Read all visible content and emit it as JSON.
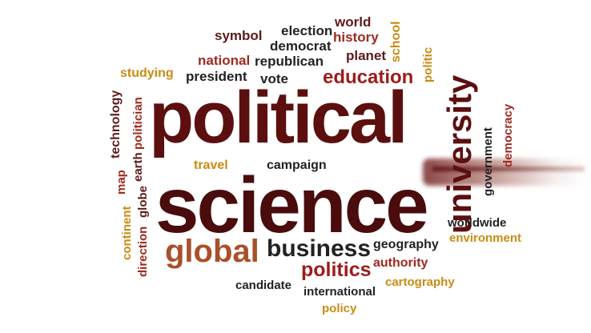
{
  "colors": {
    "dark_red": "#5c0f0f",
    "red": "#9e2a1e",
    "black": "#222222",
    "gold": "#c98b12",
    "brown": "#7b3c1e"
  },
  "words": [
    {
      "id": "political",
      "text": "political",
      "color": "#5c0f0f"
    },
    {
      "id": "science",
      "text": "science",
      "color": "#4a0c0c"
    },
    {
      "id": "university",
      "text": "university",
      "color": "#5c0f0f"
    },
    {
      "id": "global",
      "text": "global",
      "color": "#a9502b"
    },
    {
      "id": "business",
      "text": "business",
      "color": "#222222"
    },
    {
      "id": "politics",
      "text": "politics",
      "color": "#9e1b1b"
    },
    {
      "id": "education",
      "text": "education",
      "color": "#9e1b1b"
    },
    {
      "id": "symbol",
      "text": "symbol",
      "color": "#5c1a1a"
    },
    {
      "id": "election",
      "text": "election",
      "color": "#222222"
    },
    {
      "id": "world",
      "text": "world",
      "color": "#5c1a1a"
    },
    {
      "id": "history",
      "text": "history",
      "color": "#9e2a1e"
    },
    {
      "id": "school",
      "text": "school",
      "color": "#c98b12"
    },
    {
      "id": "democrat",
      "text": "democrat",
      "color": "#222222"
    },
    {
      "id": "national",
      "text": "national",
      "color": "#9e2a1e"
    },
    {
      "id": "republican",
      "text": "republican",
      "color": "#222222"
    },
    {
      "id": "planet",
      "text": "planet",
      "color": "#5c1a1a"
    },
    {
      "id": "politic",
      "text": "politic",
      "color": "#c98b12"
    },
    {
      "id": "studying",
      "text": "studying",
      "color": "#c98b12"
    },
    {
      "id": "president",
      "text": "president",
      "color": "#222222"
    },
    {
      "id": "vote",
      "text": "vote",
      "color": "#222222"
    },
    {
      "id": "technology",
      "text": "technology",
      "color": "#5c1a1a"
    },
    {
      "id": "politician",
      "text": "politician",
      "color": "#9e2a1e"
    },
    {
      "id": "earth",
      "text": "earth",
      "color": "#5c1a1a"
    },
    {
      "id": "travel",
      "text": "travel",
      "color": "#c98b12"
    },
    {
      "id": "campaign",
      "text": "campaign",
      "color": "#222222"
    },
    {
      "id": "map",
      "text": "map",
      "color": "#9e2a1e"
    },
    {
      "id": "globe",
      "text": "globe",
      "color": "#5c1a1a"
    },
    {
      "id": "continent",
      "text": "continent",
      "color": "#c98b12"
    },
    {
      "id": "direction",
      "text": "direction",
      "color": "#9e2a1e"
    },
    {
      "id": "government",
      "text": "government",
      "color": "#222222"
    },
    {
      "id": "democracy",
      "text": "democracy",
      "color": "#9e2a1e"
    },
    {
      "id": "worldwide",
      "text": "worldwide",
      "color": "#222222"
    },
    {
      "id": "environment",
      "text": "environment",
      "color": "#c98b12"
    },
    {
      "id": "geography",
      "text": "geography",
      "color": "#222222"
    },
    {
      "id": "authority",
      "text": "authority",
      "color": "#9e2a1e"
    },
    {
      "id": "candidate",
      "text": "candidate",
      "color": "#222222"
    },
    {
      "id": "international",
      "text": "international",
      "color": "#222222"
    },
    {
      "id": "cartography",
      "text": "cartography",
      "color": "#c98b12"
    },
    {
      "id": "policy",
      "text": "policy",
      "color": "#c98b12"
    }
  ]
}
